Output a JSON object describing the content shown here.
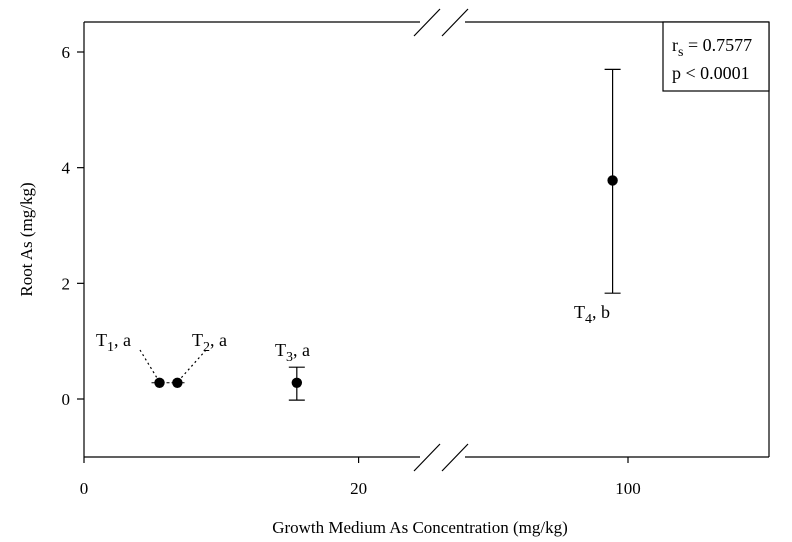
{
  "chart_data": {
    "type": "scatter",
    "title": "",
    "xlabel": "Growth Medium As Concentration (mg/kg)",
    "ylabel": "Root As (mg/kg)",
    "x_axis": {
      "broken": true,
      "segments": [
        {
          "range": [
            0,
            24.5
          ],
          "ticks": [
            0,
            20
          ],
          "tick_labels": [
            "0",
            "20"
          ]
        },
        {
          "range": [
            70,
            125
          ],
          "ticks": [
            100
          ],
          "tick_labels": [
            "100"
          ]
        }
      ]
    },
    "ylim": [
      -1,
      6.5
    ],
    "yticks": [
      0,
      2,
      4,
      6
    ],
    "ytick_labels": [
      "0",
      "2",
      "4",
      "6"
    ],
    "grid": false,
    "points": [
      {
        "x": 5.5,
        "y": 0.28,
        "y_low": 0.28,
        "y_high": 0.28,
        "label_main": "T",
        "label_sub": "1",
        "label_tail": ", a"
      },
      {
        "x": 6.8,
        "y": 0.28,
        "y_low": 0.28,
        "y_high": 0.28,
        "label_main": "T",
        "label_sub": "2",
        "label_tail": ", a"
      },
      {
        "x": 15.5,
        "y": 0.28,
        "y_low": -0.02,
        "y_high": 0.55,
        "label_main": "T",
        "label_sub": "3",
        "label_tail": ", a"
      },
      {
        "x": 98,
        "y": 3.78,
        "y_low": 1.83,
        "y_high": 5.7,
        "label_main": "T",
        "label_sub": "4",
        "label_tail": ", b"
      }
    ],
    "stats_box": {
      "r_main": "r",
      "r_sub": "s",
      "r_tail": " = 0.7577",
      "p_text": "p < 0.0001",
      "placement": "top-right"
    }
  }
}
